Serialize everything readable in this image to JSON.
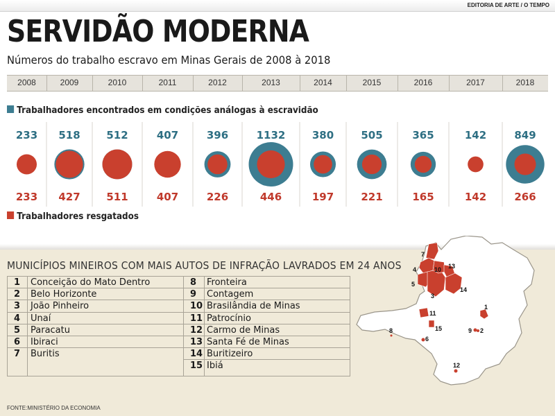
{
  "header": {
    "credit": "EDITORIA DE ARTE / O TEMPO"
  },
  "title": "SERVIDÃO MODERNA",
  "subtitle": "Números do trabalho escravo em Minas Gerais de 2008 à 2018",
  "legend": {
    "found_label": "Trabalhadores encontrados em condições análogas à escravidão",
    "rescued_label": "Trabalhadores resgatados"
  },
  "colors": {
    "found": "#3d7d91",
    "rescued": "#c9402e",
    "found_text": "#2e6f83",
    "rescued_text": "#c0392b"
  },
  "chart_data": {
    "type": "bubble",
    "categories": [
      "2008",
      "2009",
      "2010",
      "2011",
      "2012",
      "2013",
      "2014",
      "2015",
      "2016",
      "2017",
      "2018"
    ],
    "series": [
      {
        "name": "Trabalhadores encontrados em condições análogas à escravidão",
        "values": [
          233,
          518,
          512,
          407,
          396,
          1132,
          380,
          505,
          365,
          142,
          849
        ]
      },
      {
        "name": "Trabalhadores resgatados",
        "values": [
          233,
          427,
          511,
          407,
          226,
          446,
          197,
          221,
          165,
          142,
          266
        ]
      }
    ]
  },
  "municipalities": {
    "title": "MUNICÍPIOS MINEIROS COM MAIS AUTOS DE INFRAÇÃO LAVRADOS EM 24 ANOS",
    "items": [
      {
        "num": "1",
        "name": "Conceição do Mato Dentro"
      },
      {
        "num": "2",
        "name": "Belo Horizonte"
      },
      {
        "num": "3",
        "name": "João Pinheiro"
      },
      {
        "num": "4",
        "name": "Unaí"
      },
      {
        "num": "5",
        "name": "Paracatu"
      },
      {
        "num": "6",
        "name": "Ibiraci"
      },
      {
        "num": "7",
        "name": "Buritis"
      },
      {
        "num": "8",
        "name": "Fronteira"
      },
      {
        "num": "9",
        "name": "Contagem"
      },
      {
        "num": "10",
        "name": "Brasilândia de Minas"
      },
      {
        "num": "11",
        "name": "Patrocínio"
      },
      {
        "num": "12",
        "name": "Carmo de Minas"
      },
      {
        "num": "13",
        "name": "Santa Fé de Minas"
      },
      {
        "num": "14",
        "name": "Buritizeiro"
      },
      {
        "num": "15",
        "name": "Ibiá"
      }
    ]
  },
  "source": "FONTE:MINISTÉRIO DA ECONOMIA"
}
